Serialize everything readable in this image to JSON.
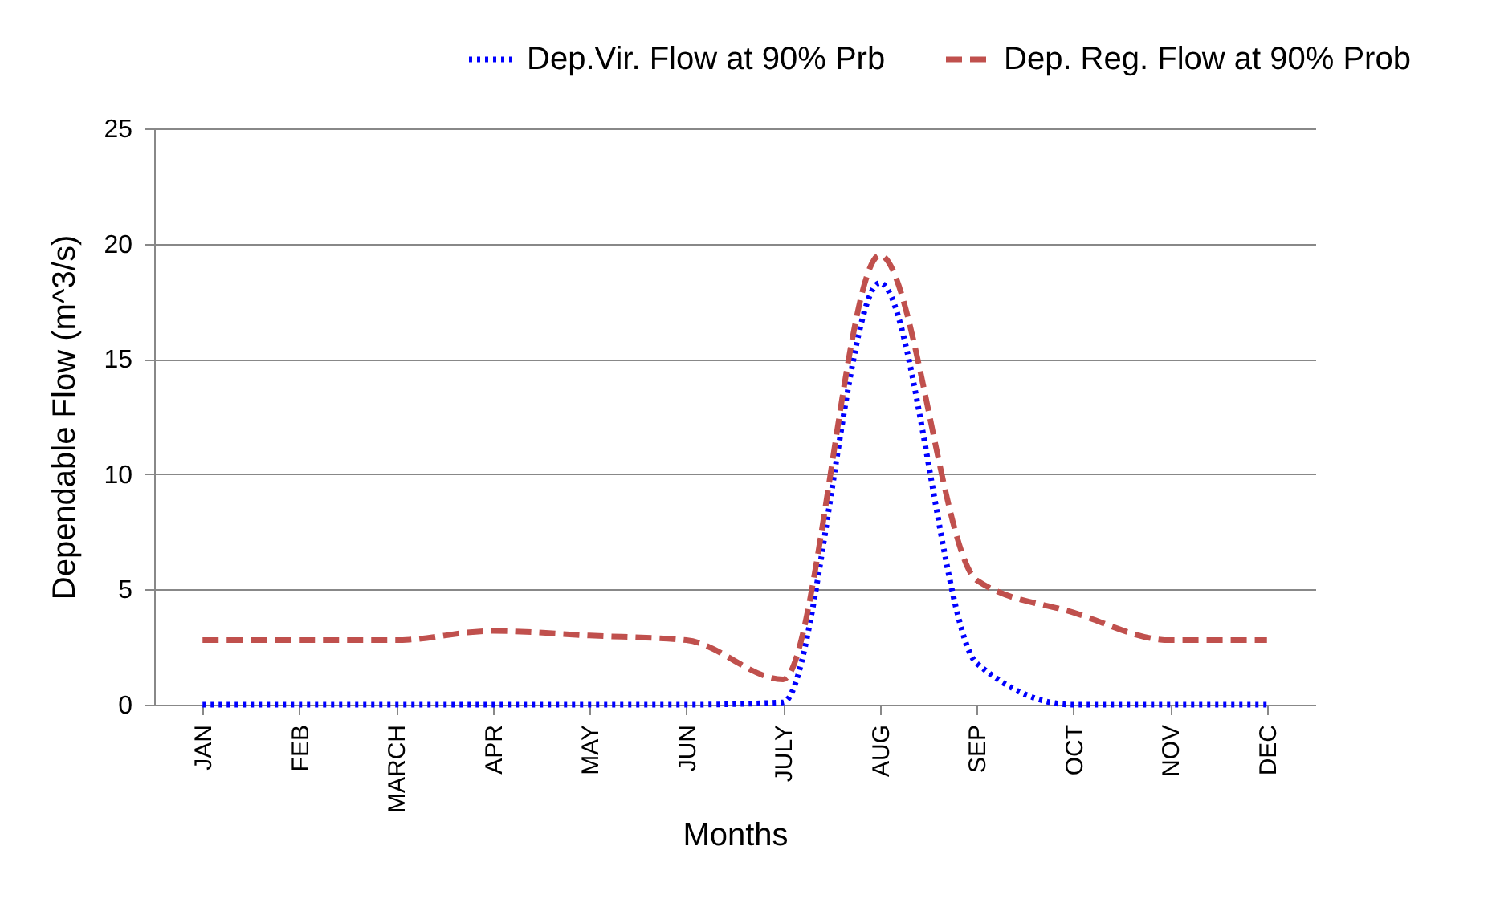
{
  "chart_data": {
    "type": "line",
    "xlabel": "Months",
    "ylabel": "Dependable Flow (m^3/s)",
    "categories": [
      "JAN",
      "FEB",
      "MARCH",
      "APR",
      "MAY",
      "JUN",
      "JULY",
      "AUG",
      "SEP",
      "OCT",
      "NOV",
      "DEC"
    ],
    "series": [
      {
        "name": "Dep.Vir. Flow at 90% Prb",
        "color": "#0000ff",
        "line_style": "dotted",
        "values": [
          0,
          0,
          0,
          0,
          0,
          0,
          0.1,
          18.3,
          1.8,
          0,
          0,
          0
        ]
      },
      {
        "name": "Dep. Reg. Flow at 90% Prob",
        "color": "#c0504d",
        "line_style": "dashed",
        "values": [
          2.8,
          2.8,
          2.8,
          3.2,
          3.0,
          2.8,
          1.1,
          19.5,
          5.4,
          4.0,
          2.8,
          2.8
        ]
      }
    ],
    "ylim": [
      0,
      25
    ],
    "yticks": [
      0,
      5,
      10,
      15,
      20,
      25
    ],
    "grid": "y",
    "legend": "top right"
  }
}
